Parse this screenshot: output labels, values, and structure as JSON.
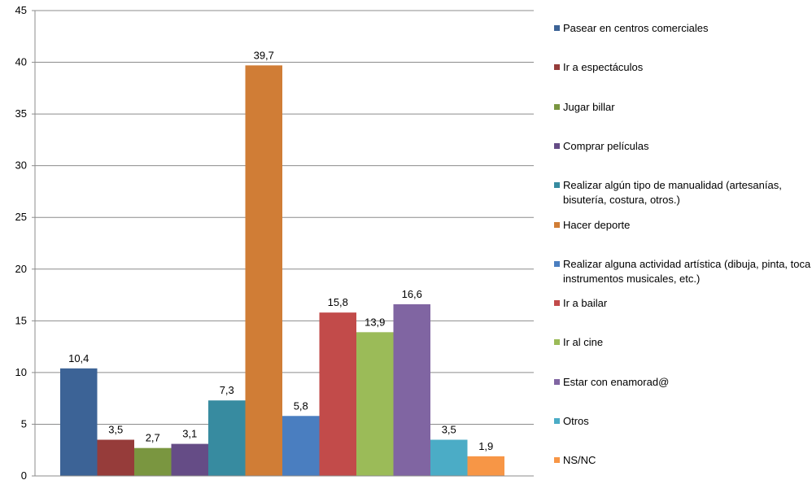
{
  "chart_data": {
    "type": "bar",
    "ylim": [
      0,
      45
    ],
    "y_ticks": [
      0,
      5,
      10,
      15,
      20,
      25,
      30,
      35,
      40,
      45
    ],
    "grid": true,
    "legend_position": "right",
    "series": [
      {
        "name": "Pasear en centros comerciales",
        "value": 10.4,
        "label": "10,4",
        "color": "#3c6396"
      },
      {
        "name": "Ir a espectáculos",
        "value": 3.5,
        "label": "3,5",
        "color": "#963c3a"
      },
      {
        "name": "Jugar billar",
        "value": 2.7,
        "label": "2,7",
        "color": "#7a9640"
      },
      {
        "name": "Comprar películas",
        "value": 3.1,
        "label": "3,1",
        "color": "#654c86"
      },
      {
        "name": "Realizar algún tipo de manualidad (artesanías, bisutería, costura, otros.)",
        "value": 7.3,
        "label": "7,3",
        "color": "#378ba0"
      },
      {
        "name": "Hacer deporte",
        "value": 39.7,
        "label": "39,7",
        "color": "#d07d36"
      },
      {
        "name": "Realizar alguna actividad artística (dibuja, pinta, toca instrumentos musicales, etc.)",
        "value": 5.8,
        "label": "5,8",
        "color": "#4a7ec0"
      },
      {
        "name": "Ir a bailar",
        "value": 15.8,
        "label": "15,8",
        "color": "#c24b4a"
      },
      {
        "name": "Ir al cine",
        "value": 13.9,
        "label": "13,9",
        "color": "#9bbb58"
      },
      {
        "name": "Estar con enamorad@",
        "value": 16.6,
        "label": "16,6",
        "color": "#8065a2"
      },
      {
        "name": "Otros",
        "value": 3.5,
        "label": "3,5",
        "color": "#4bacc6"
      },
      {
        "name": "NS/NC",
        "value": 1.9,
        "label": "1,9",
        "color": "#f79646"
      }
    ]
  }
}
